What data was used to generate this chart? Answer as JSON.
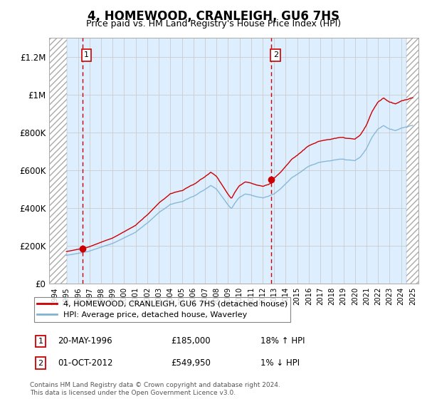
{
  "title": "4, HOMEWOOD, CRANLEIGH, GU6 7HS",
  "subtitle": "Price paid vs. HM Land Registry's House Price Index (HPI)",
  "legend_line1": "4, HOMEWOOD, CRANLEIGH, GU6 7HS (detached house)",
  "legend_line2": "HPI: Average price, detached house, Waverley",
  "annotation1_label": "1",
  "annotation1_date": "20-MAY-1996",
  "annotation1_price": 185000,
  "annotation1_hpi": "18% ↑ HPI",
  "annotation2_label": "2",
  "annotation2_date": "01-OCT-2012",
  "annotation2_price": 549950,
  "annotation2_hpi": "1% ↓ HPI",
  "footnote": "Contains HM Land Registry data © Crown copyright and database right 2024.\nThis data is licensed under the Open Government Licence v3.0.",
  "line_color_red": "#cc0000",
  "line_color_blue": "#7fb3d3",
  "vline_color": "#cc0000",
  "marker_color": "#cc0000",
  "grid_color": "#cccccc",
  "bg_color": "#ddeeff",
  "ylim": [
    0,
    1300000
  ],
  "xlim_start": 1993.5,
  "xlim_end": 2025.5,
  "sale1_x": 1996.38,
  "sale2_x": 2012.75
}
